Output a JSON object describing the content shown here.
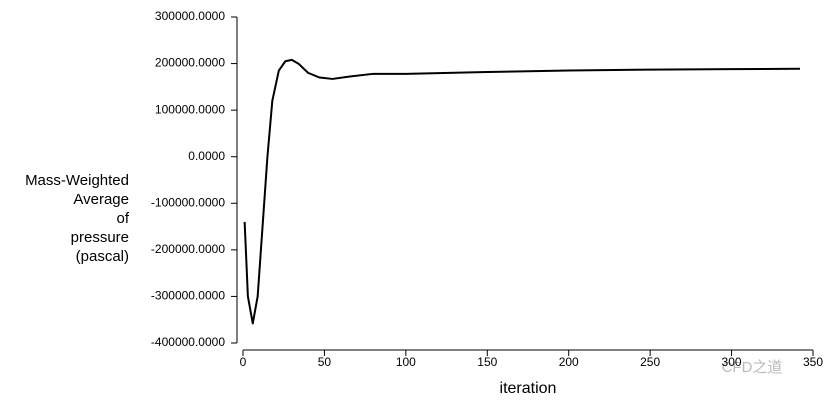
{
  "chart_data": {
    "type": "line",
    "ylabel": [
      "Mass-Weighted",
      "Average",
      "of",
      "pressure",
      "(pascal)"
    ],
    "xlabel": "iteration",
    "annotation": "CFD之道",
    "x": [
      1,
      3,
      6,
      9,
      12,
      15,
      18,
      22,
      26,
      30,
      34,
      40,
      47,
      55,
      65,
      80,
      100,
      150,
      200,
      250,
      300,
      342
    ],
    "series": [
      {
        "color": "#000000",
        "values": [
          -140000,
          -300000,
          -358000,
          -300000,
          -150000,
          0,
          120000,
          185000,
          205000,
          208000,
          200000,
          180000,
          170000,
          167000,
          172000,
          178000,
          178000,
          182000,
          185000,
          187000,
          188000,
          189000
        ]
      }
    ],
    "xlim": [
      0,
      350
    ],
    "xticks": [
      0,
      50,
      100,
      150,
      200,
      250,
      300,
      350
    ],
    "ylim": [
      -400000,
      300000
    ],
    "yticks": [
      {
        "value": -400000,
        "label": "-400000.0000"
      },
      {
        "value": -300000,
        "label": "-300000.0000"
      },
      {
        "value": -200000,
        "label": "-200000.0000"
      },
      {
        "value": -100000,
        "label": "-100000.0000"
      },
      {
        "value": 0,
        "label": "0.0000"
      },
      {
        "value": 100000,
        "label": "100000.0000"
      },
      {
        "value": 200000,
        "label": "200000.0000"
      },
      {
        "value": 300000,
        "label": "300000.0000"
      }
    ],
    "grid": false
  }
}
